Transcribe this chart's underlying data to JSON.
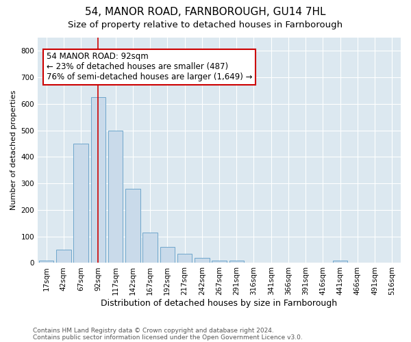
{
  "title": "54, MANOR ROAD, FARNBOROUGH, GU14 7HL",
  "subtitle": "Size of property relative to detached houses in Farnborough",
  "xlabel": "Distribution of detached houses by size in Farnborough",
  "ylabel": "Number of detached properties",
  "bar_labels": [
    "17sqm",
    "42sqm",
    "67sqm",
    "92sqm",
    "117sqm",
    "142sqm",
    "167sqm",
    "192sqm",
    "217sqm",
    "242sqm",
    "267sqm",
    "291sqm",
    "316sqm",
    "341sqm",
    "366sqm",
    "391sqm",
    "416sqm",
    "441sqm",
    "466sqm",
    "491sqm",
    "516sqm"
  ],
  "bar_values": [
    10,
    50,
    450,
    625,
    500,
    280,
    115,
    60,
    35,
    20,
    10,
    8,
    0,
    0,
    0,
    0,
    0,
    8,
    0,
    0,
    0
  ],
  "bar_color": "#c9daea",
  "bar_edge_color": "#6ea6cc",
  "vline_x": 3,
  "vline_color": "#cc0000",
  "annotation_text": "54 MANOR ROAD: 92sqm\n← 23% of detached houses are smaller (487)\n76% of semi-detached houses are larger (1,649) →",
  "annotation_box_color": "#ffffff",
  "annotation_box_edge": "#cc0000",
  "ylim": [
    0,
    850
  ],
  "yticks": [
    0,
    100,
    200,
    300,
    400,
    500,
    600,
    700,
    800
  ],
  "footer_line1": "Contains HM Land Registry data © Crown copyright and database right 2024.",
  "footer_line2": "Contains public sector information licensed under the Open Government Licence v3.0.",
  "bg_color": "#ffffff",
  "plot_bg_color": "#dce8f0",
  "grid_color": "#ffffff",
  "title_fontsize": 11,
  "subtitle_fontsize": 9.5,
  "xlabel_fontsize": 9,
  "ylabel_fontsize": 8,
  "tick_fontsize": 7.5,
  "footer_fontsize": 6.5,
  "annotation_fontsize": 8.5
}
